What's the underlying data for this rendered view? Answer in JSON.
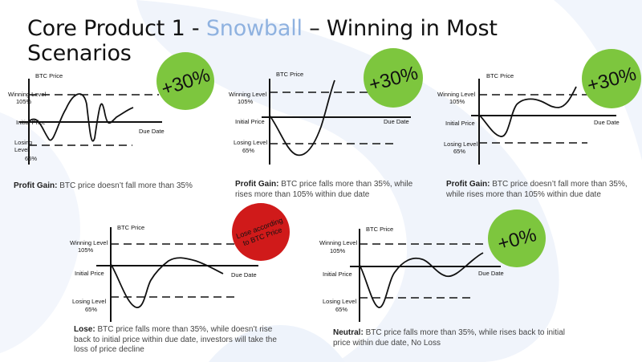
{
  "title": {
    "prefix": "Core Product 1 - ",
    "highlight": "Snowball",
    "suffix": " – Winning in Most Scenarios"
  },
  "axis_labels": {
    "y_axis": "BTC Price",
    "winning_level": "Winning Level",
    "winning_value": "105%",
    "initial_price": "Initial Price",
    "losing_level": "Losing",
    "losing_level_word": "Level",
    "losing_value": "65%",
    "losing_level_full": "Losing Level",
    "due_date": "Due Date"
  },
  "scenarios": [
    {
      "badge": "+30%",
      "badge_color": "#7dc63e",
      "caption_bold": "Profit Gain:",
      "caption_text": " BTC price doesn’t fall more than 35%"
    },
    {
      "badge": "+30%",
      "badge_color": "#7dc63e",
      "caption_bold": "Profit Gain:",
      "caption_text": " BTC price falls more than 35%, while rises more than 105% within due date"
    },
    {
      "badge": "+30%",
      "badge_color": "#7dc63e",
      "caption_bold": "Profit Gain:",
      "caption_text": " BTC price doesn’t fall more than 35%, while rises more than 105% within due date"
    },
    {
      "badge": "Lose according to BTC Price",
      "badge_line1": "Lose according",
      "badge_line2": "to BTC Price",
      "badge_color": "#d01a1a",
      "caption_bold": "Lose:",
      "caption_text": " BTC price falls more than 35%, while doesn’t rise back to initial price within due date, investors will take the loss of price decline"
    },
    {
      "badge": "+0%",
      "badge_color": "#7dc63e",
      "caption_bold": "Neutral:",
      "caption_text": " BTC price falls more than 35%, while rises back to initial price within due date, No Loss"
    }
  ]
}
